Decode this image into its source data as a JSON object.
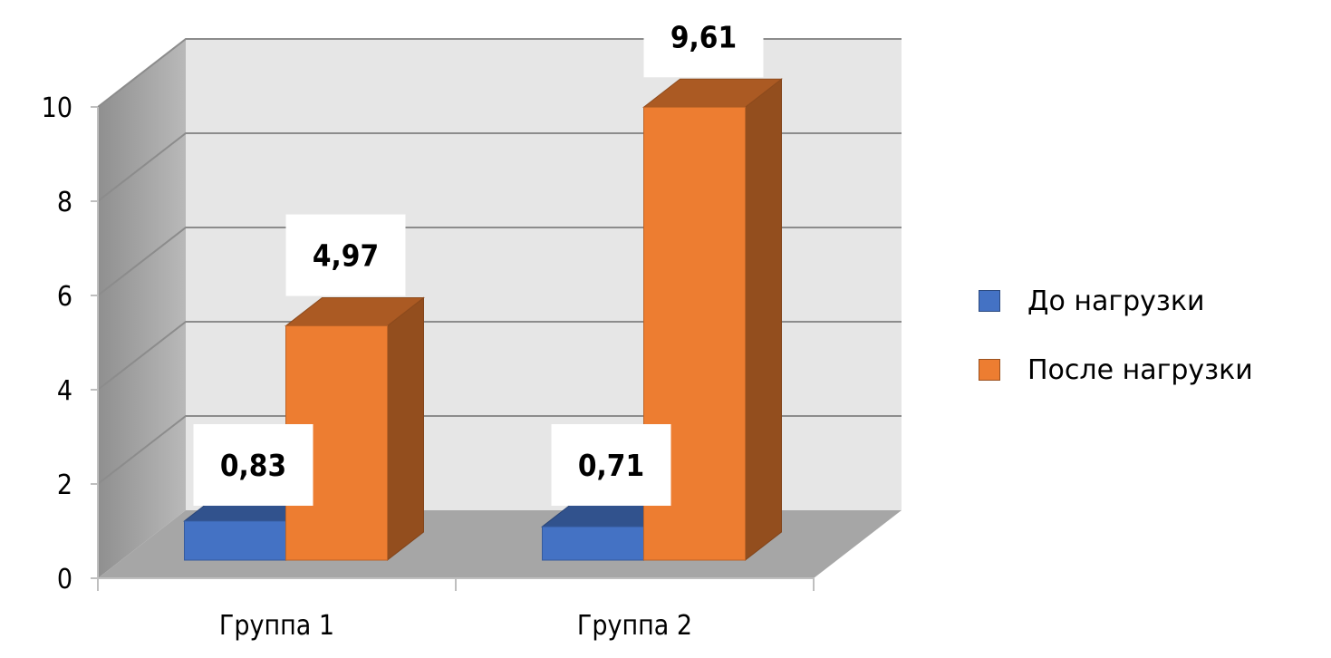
{
  "chart_data": {
    "type": "bar",
    "categories": [
      "Группа 1",
      "Группа 2"
    ],
    "series": [
      {
        "name": "До нагрузки",
        "values": [
          0.83,
          0.71
        ],
        "labels": [
          "0,83",
          "0,71"
        ],
        "color": "#4472c4"
      },
      {
        "name": "После нагрузки",
        "values": [
          4.97,
          9.61
        ],
        "labels": [
          "4,97",
          "9,61"
        ],
        "color": "#ed7d31"
      }
    ],
    "ylim": [
      0,
      10
    ],
    "yticks": [
      "0",
      "2",
      "4",
      "6",
      "8",
      "10"
    ],
    "grid": true,
    "legend_position": "right",
    "style": "3d-clustered-column"
  }
}
